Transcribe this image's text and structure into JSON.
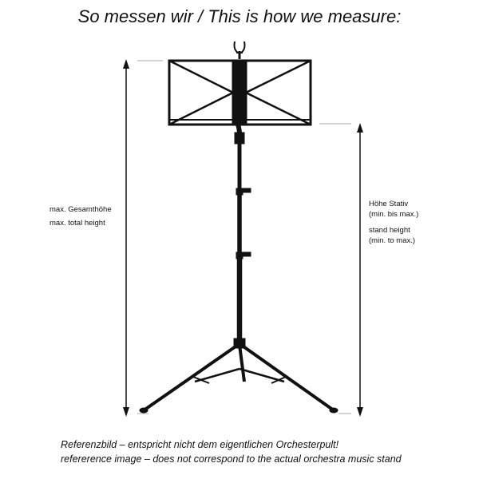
{
  "title": "So messen wir / This is how we measure:",
  "left_label": {
    "line1": "max. Gesamthöhe",
    "line2": "max. total height"
  },
  "right_label": {
    "de_line1": "Höhe Stativ",
    "de_line2": "(min. bis max.)",
    "en_line1": "stand height",
    "en_line2": "(min. to max.)"
  },
  "footer": {
    "line1": "Referenzbild – entspricht nicht dem eigentlichen Orchesterpult!",
    "line2": "refererence image – does not correspond to the actual orchestra music stand"
  },
  "colors": {
    "stand": "#111111",
    "arrow": "#111111",
    "guide": "#aaaaaa"
  }
}
